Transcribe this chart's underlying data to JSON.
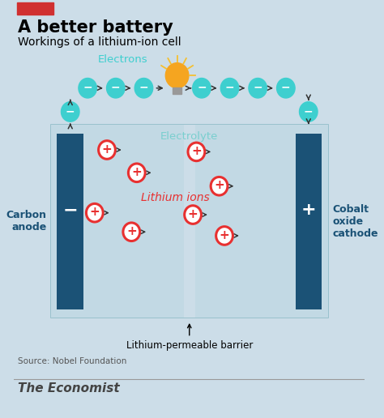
{
  "title": "A better battery",
  "subtitle": "Workings of a lithium-ion cell",
  "source": "Source: Nobel Foundation",
  "footer": "The Economist",
  "bg_color": "#ccdde8",
  "panel_outer_color": "#b8cfd8",
  "panel_left_color": "#bdd4de",
  "panel_right_color": "#bdd4de",
  "barrier_color": "#ccdde8",
  "electrode_color": "#1b5276",
  "electron_color": "#3ecfcf",
  "lithium_color": "#e83030",
  "arrow_color": "#333333",
  "red_bar_color": "#d03030",
  "electrolyte_color": "#7acfcf",
  "anode_label": "Carbon\nanode",
  "cathode_label": "Cobalt\noxide\ncathode",
  "electrolyte_label": "Electrolyte",
  "electrons_label": "Electrons",
  "lithium_ions_label": "Lithium ions",
  "barrier_label": "Lithium-permeable barrier",
  "figsize": [
    4.74,
    5.16
  ],
  "dpi": 100,
  "xlim": [
    0,
    10
  ],
  "ylim": [
    0,
    10.9
  ]
}
